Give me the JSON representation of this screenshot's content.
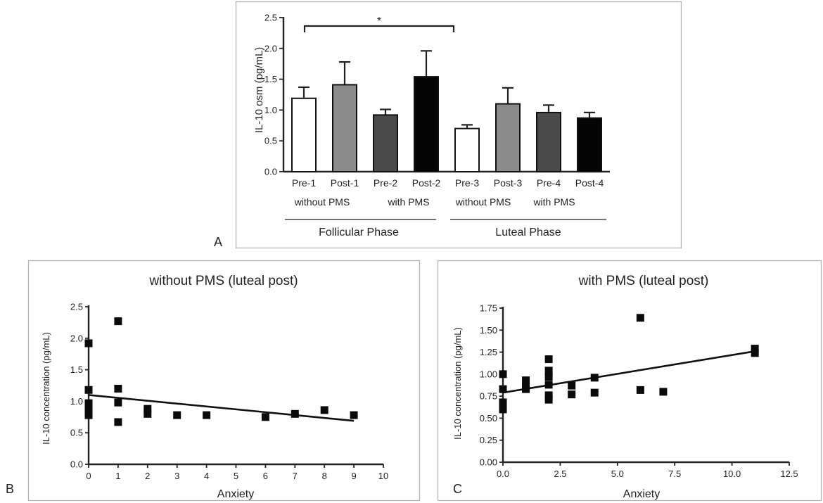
{
  "chart_data": [
    {
      "panel": "A",
      "type": "bar",
      "title": "",
      "ylabel": "IL-10 osm (pg/mL)",
      "ylim": [
        0,
        2.5
      ],
      "yticks": [
        "0.0",
        "0.5",
        "1.0",
        "1.5",
        "2.0",
        "2.5"
      ],
      "categories": [
        "Pre-1",
        "Post-1",
        "Pre-2",
        "Post-2",
        "Pre-3",
        "Post-3",
        "Pre-4",
        "Post-4"
      ],
      "values": [
        1.19,
        1.41,
        0.92,
        1.54,
        0.7,
        1.1,
        0.96,
        0.87
      ],
      "errors": [
        0.18,
        0.37,
        0.09,
        0.42,
        0.06,
        0.26,
        0.12,
        0.09
      ],
      "fills": [
        "#ffffff",
        "#8c8c8c",
        "#4a4a4a",
        "#050505",
        "#ffffff",
        "#8c8c8c",
        "#4a4a4a",
        "#050505"
      ],
      "groups": [
        "without PMS",
        "with PMS",
        "without PMS",
        "with PMS"
      ],
      "phases": [
        "Follicular Phase",
        "Luteal Phase"
      ],
      "significance": {
        "label": "*",
        "from": "Pre-1",
        "to": "Pre-3"
      }
    },
    {
      "panel": "B",
      "type": "scatter",
      "title": "without PMS (luteal post)",
      "xlabel": "Anxiety",
      "ylabel": "IL-10 concentration (pg/mL)",
      "xlim": [
        0,
        10
      ],
      "ylim": [
        0,
        2.5
      ],
      "xticks": [
        "0",
        "1",
        "2",
        "3",
        "4",
        "5",
        "6",
        "7",
        "8",
        "9",
        "10"
      ],
      "yticks": [
        "0.0",
        "0.5",
        "1.0",
        "1.5",
        "2.0",
        "2.5"
      ],
      "points": [
        [
          0,
          1.92
        ],
        [
          0,
          1.18
        ],
        [
          0,
          0.97
        ],
        [
          0,
          0.9
        ],
        [
          0,
          0.84
        ],
        [
          0,
          0.78
        ],
        [
          1,
          2.27
        ],
        [
          1,
          1.2
        ],
        [
          1,
          0.98
        ],
        [
          1,
          0.67
        ],
        [
          2,
          0.88
        ],
        [
          2,
          0.8
        ],
        [
          3,
          0.78
        ],
        [
          4,
          0.78
        ],
        [
          6,
          0.75
        ],
        [
          7,
          0.8
        ],
        [
          8,
          0.86
        ],
        [
          9,
          0.78
        ]
      ],
      "fit_line": [
        [
          0,
          1.1
        ],
        [
          9,
          0.69
        ]
      ]
    },
    {
      "panel": "C",
      "type": "scatter",
      "title": "with PMS (luteal post)",
      "xlabel": "Anxiety",
      "ylabel": "IL-10 concentration (pg/mL)",
      "xlim": [
        0,
        12.5
      ],
      "ylim": [
        0,
        1.75
      ],
      "xticks": [
        "0.0",
        "2.5",
        "5.0",
        "7.5",
        "10.0",
        "12.5"
      ],
      "yticks": [
        "0.00",
        "0.25",
        "0.50",
        "0.75",
        "1.00",
        "1.25",
        "1.50",
        "1.75"
      ],
      "points": [
        [
          0,
          1.0
        ],
        [
          0,
          0.83
        ],
        [
          0,
          0.68
        ],
        [
          0,
          0.6
        ],
        [
          1,
          0.93
        ],
        [
          1,
          0.87
        ],
        [
          1,
          0.83
        ],
        [
          2,
          1.17
        ],
        [
          2,
          1.04
        ],
        [
          2,
          0.97
        ],
        [
          2,
          0.88
        ],
        [
          2,
          0.76
        ],
        [
          2,
          0.71
        ],
        [
          3,
          0.87
        ],
        [
          3,
          0.77
        ],
        [
          4,
          0.96
        ],
        [
          4,
          0.79
        ],
        [
          6,
          1.64
        ],
        [
          6,
          0.82
        ],
        [
          7,
          0.8
        ],
        [
          11,
          1.29
        ],
        [
          11,
          1.24
        ]
      ],
      "fit_line": [
        [
          0,
          0.79
        ],
        [
          11,
          1.26
        ]
      ]
    }
  ]
}
